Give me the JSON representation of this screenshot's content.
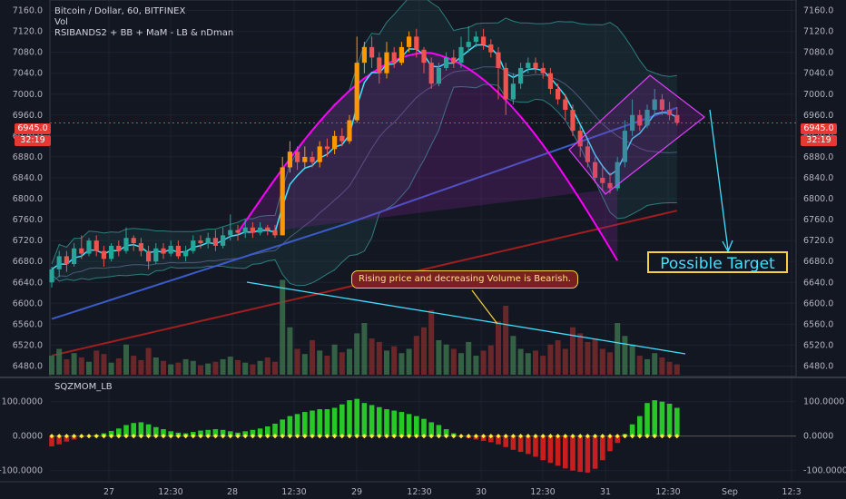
{
  "header": {
    "title": "Bitcoin / Dollar, 60, BITFINEX",
    "vol_label": "Vol",
    "indicators": "RSIBANDS2 + BB + MaM - LB & nDman",
    "osc_label": "SQZMOM_LB"
  },
  "price_tag": {
    "value": "6945.0",
    "countdown": "32:19"
  },
  "annotations": {
    "callout": "Rising price and decreasing Volume is Bearish.",
    "target": "Possible Target"
  },
  "colors": {
    "background": "#131722",
    "up": "#26a69a",
    "down": "#ef5350",
    "highlight": "#ff9800",
    "ema": "#40e0ff",
    "arc": "#ff00ff",
    "ma_blue": "#3b5bc9",
    "ma_red": "#a01e1e",
    "squeeze_on": "#ffeb3b",
    "osc_up": "#26c826",
    "osc_down": "#c81e1e"
  },
  "chart_data": {
    "type": "candlestick",
    "title": "Bitcoin / Dollar, 60, BITFINEX",
    "price_axis": {
      "ylim": [
        6460,
        7180
      ],
      "ticks": [
        "7160.0",
        "7120.0",
        "7080.0",
        "7040.0",
        "7000.0",
        "6960.0",
        "6920.0",
        "6880.0",
        "6840.0",
        "6800.0",
        "6760.0",
        "6720.0",
        "6680.0",
        "6640.0",
        "6600.0",
        "6560.0",
        "6520.0",
        "6480.0"
      ]
    },
    "osc_axis": {
      "ylim": [
        -130,
        165
      ],
      "ticks": [
        "100.0000",
        "0.0000",
        "-100.0000"
      ]
    },
    "time_axis": {
      "ticks": [
        "27",
        "12:30",
        "28",
        "12:30",
        "29",
        "12:30",
        "30",
        "12:30",
        "31",
        "12:30",
        "Sep",
        "12:3"
      ]
    },
    "last_price": 6945.0,
    "candles": [
      [
        6640,
        6665,
        6630,
        6670
      ],
      [
        6665,
        6690,
        6650,
        6700
      ],
      [
        6690,
        6675,
        6660,
        6700
      ],
      [
        6675,
        6705,
        6670,
        6715
      ],
      [
        6705,
        6695,
        6685,
        6730
      ],
      [
        6695,
        6720,
        6690,
        6725
      ],
      [
        6720,
        6700,
        6690,
        6730
      ],
      [
        6700,
        6685,
        6670,
        6710
      ],
      [
        6685,
        6710,
        6680,
        6715
      ],
      [
        6710,
        6700,
        6690,
        6720
      ],
      [
        6700,
        6725,
        6695,
        6745
      ],
      [
        6725,
        6715,
        6700,
        6730
      ],
      [
        6715,
        6700,
        6690,
        6725
      ],
      [
        6700,
        6680,
        6665,
        6710
      ],
      [
        6680,
        6705,
        6675,
        6715
      ],
      [
        6705,
        6695,
        6685,
        6715
      ],
      [
        6695,
        6710,
        6690,
        6720
      ],
      [
        6710,
        6690,
        6685,
        6720
      ],
      [
        6690,
        6700,
        6680,
        6710
      ],
      [
        6700,
        6720,
        6695,
        6730
      ],
      [
        6720,
        6715,
        6705,
        6730
      ],
      [
        6715,
        6725,
        6705,
        6735
      ],
      [
        6725,
        6710,
        6700,
        6740
      ],
      [
        6710,
        6730,
        6705,
        6745
      ],
      [
        6730,
        6740,
        6720,
        6770
      ],
      [
        6740,
        6735,
        6720,
        6750
      ],
      [
        6735,
        6745,
        6725,
        6760
      ],
      [
        6745,
        6735,
        6725,
        6755
      ],
      [
        6735,
        6745,
        6730,
        6755
      ],
      [
        6745,
        6740,
        6730,
        6750
      ],
      [
        6740,
        6730,
        6725,
        6750
      ],
      [
        6730,
        6860,
        6730,
        6880
      ],
      [
        6860,
        6890,
        6850,
        6910
      ],
      [
        6890,
        6870,
        6855,
        6900
      ],
      [
        6870,
        6880,
        6860,
        6900
      ],
      [
        6880,
        6870,
        6860,
        6890
      ],
      [
        6870,
        6900,
        6860,
        6910
      ],
      [
        6900,
        6895,
        6880,
        6915
      ],
      [
        6895,
        6920,
        6885,
        6930
      ],
      [
        6920,
        6910,
        6900,
        6935
      ],
      [
        6910,
        6950,
        6905,
        6960
      ],
      [
        6950,
        7060,
        6945,
        7110
      ],
      [
        7060,
        7090,
        7040,
        7100
      ],
      [
        7090,
        7070,
        7050,
        7110
      ],
      [
        7070,
        7040,
        7020,
        7080
      ],
      [
        7040,
        7080,
        7030,
        7100
      ],
      [
        7080,
        7060,
        7050,
        7090
      ],
      [
        7060,
        7090,
        7055,
        7100
      ],
      [
        7090,
        7110,
        7080,
        7120
      ],
      [
        7110,
        7085,
        7070,
        7125
      ],
      [
        7085,
        7060,
        7040,
        7090
      ],
      [
        7060,
        7020,
        7010,
        7070
      ],
      [
        7020,
        7050,
        7015,
        7060
      ],
      [
        7050,
        7070,
        7045,
        7080
      ],
      [
        7070,
        7060,
        7050,
        7085
      ],
      [
        7060,
        7090,
        7050,
        7110
      ],
      [
        7090,
        7100,
        7080,
        7130
      ],
      [
        7100,
        7110,
        7090,
        7120
      ],
      [
        7110,
        7095,
        7085,
        7125
      ],
      [
        7095,
        7080,
        7070,
        7105
      ],
      [
        7080,
        7050,
        6990,
        7090
      ],
      [
        7050,
        6990,
        6960,
        7060
      ],
      [
        6990,
        7020,
        6980,
        7040
      ],
      [
        7020,
        7050,
        7010,
        7060
      ],
      [
        7050,
        7060,
        7040,
        7070
      ],
      [
        7060,
        7050,
        7040,
        7070
      ],
      [
        7050,
        7040,
        7030,
        7060
      ],
      [
        7040,
        7010,
        7000,
        7050
      ],
      [
        7010,
        6990,
        6980,
        7020
      ],
      [
        6990,
        6970,
        6950,
        7000
      ],
      [
        6970,
        6930,
        6920,
        6980
      ],
      [
        6930,
        6900,
        6880,
        6940
      ],
      [
        6900,
        6870,
        6860,
        6910
      ],
      [
        6870,
        6840,
        6830,
        6880
      ],
      [
        6840,
        6830,
        6815,
        6860
      ],
      [
        6830,
        6820,
        6810,
        6850
      ],
      [
        6820,
        6870,
        6815,
        6880
      ],
      [
        6870,
        6930,
        6860,
        6950
      ],
      [
        6930,
        6960,
        6920,
        6990
      ],
      [
        6960,
        6940,
        6930,
        6970
      ],
      [
        6940,
        6970,
        6935,
        6980
      ],
      [
        6970,
        6990,
        6960,
        7010
      ],
      [
        6990,
        6970,
        6960,
        7000
      ],
      [
        6970,
        6960,
        6950,
        6985
      ],
      [
        6960,
        6945,
        6940,
        6975
      ]
    ],
    "volume": [
      22,
      30,
      18,
      25,
      20,
      15,
      28,
      24,
      14,
      19,
      35,
      22,
      17,
      31,
      20,
      16,
      12,
      14,
      18,
      16,
      11,
      13,
      15,
      18,
      21,
      17,
      14,
      12,
      16,
      20,
      15,
      110,
      55,
      30,
      24,
      40,
      28,
      22,
      35,
      26,
      30,
      48,
      60,
      42,
      38,
      28,
      33,
      25,
      30,
      45,
      55,
      75,
      40,
      35,
      30,
      25,
      38,
      22,
      28,
      34,
      62,
      80,
      45,
      30,
      25,
      28,
      22,
      35,
      40,
      30,
      55,
      48,
      38,
      42,
      30,
      26,
      60,
      45,
      35,
      22,
      18,
      25,
      20,
      15,
      12
    ],
    "momentum": [
      -30,
      -24,
      -16,
      -10,
      -4,
      0,
      3,
      8,
      15,
      22,
      32,
      38,
      40,
      34,
      26,
      20,
      14,
      10,
      8,
      12,
      16,
      18,
      20,
      18,
      14,
      10,
      14,
      18,
      22,
      28,
      36,
      48,
      58,
      64,
      70,
      74,
      78,
      78,
      82,
      92,
      104,
      108,
      96,
      90,
      84,
      78,
      74,
      70,
      64,
      58,
      50,
      40,
      32,
      20,
      8,
      -2,
      -6,
      -10,
      -14,
      -18,
      -24,
      -32,
      -40,
      -46,
      -52,
      -60,
      -70,
      -78,
      -86,
      -94,
      -100,
      -104,
      -106,
      -95,
      -70,
      -44,
      -20,
      6,
      34,
      58,
      96,
      104,
      100,
      94,
      82
    ]
  }
}
